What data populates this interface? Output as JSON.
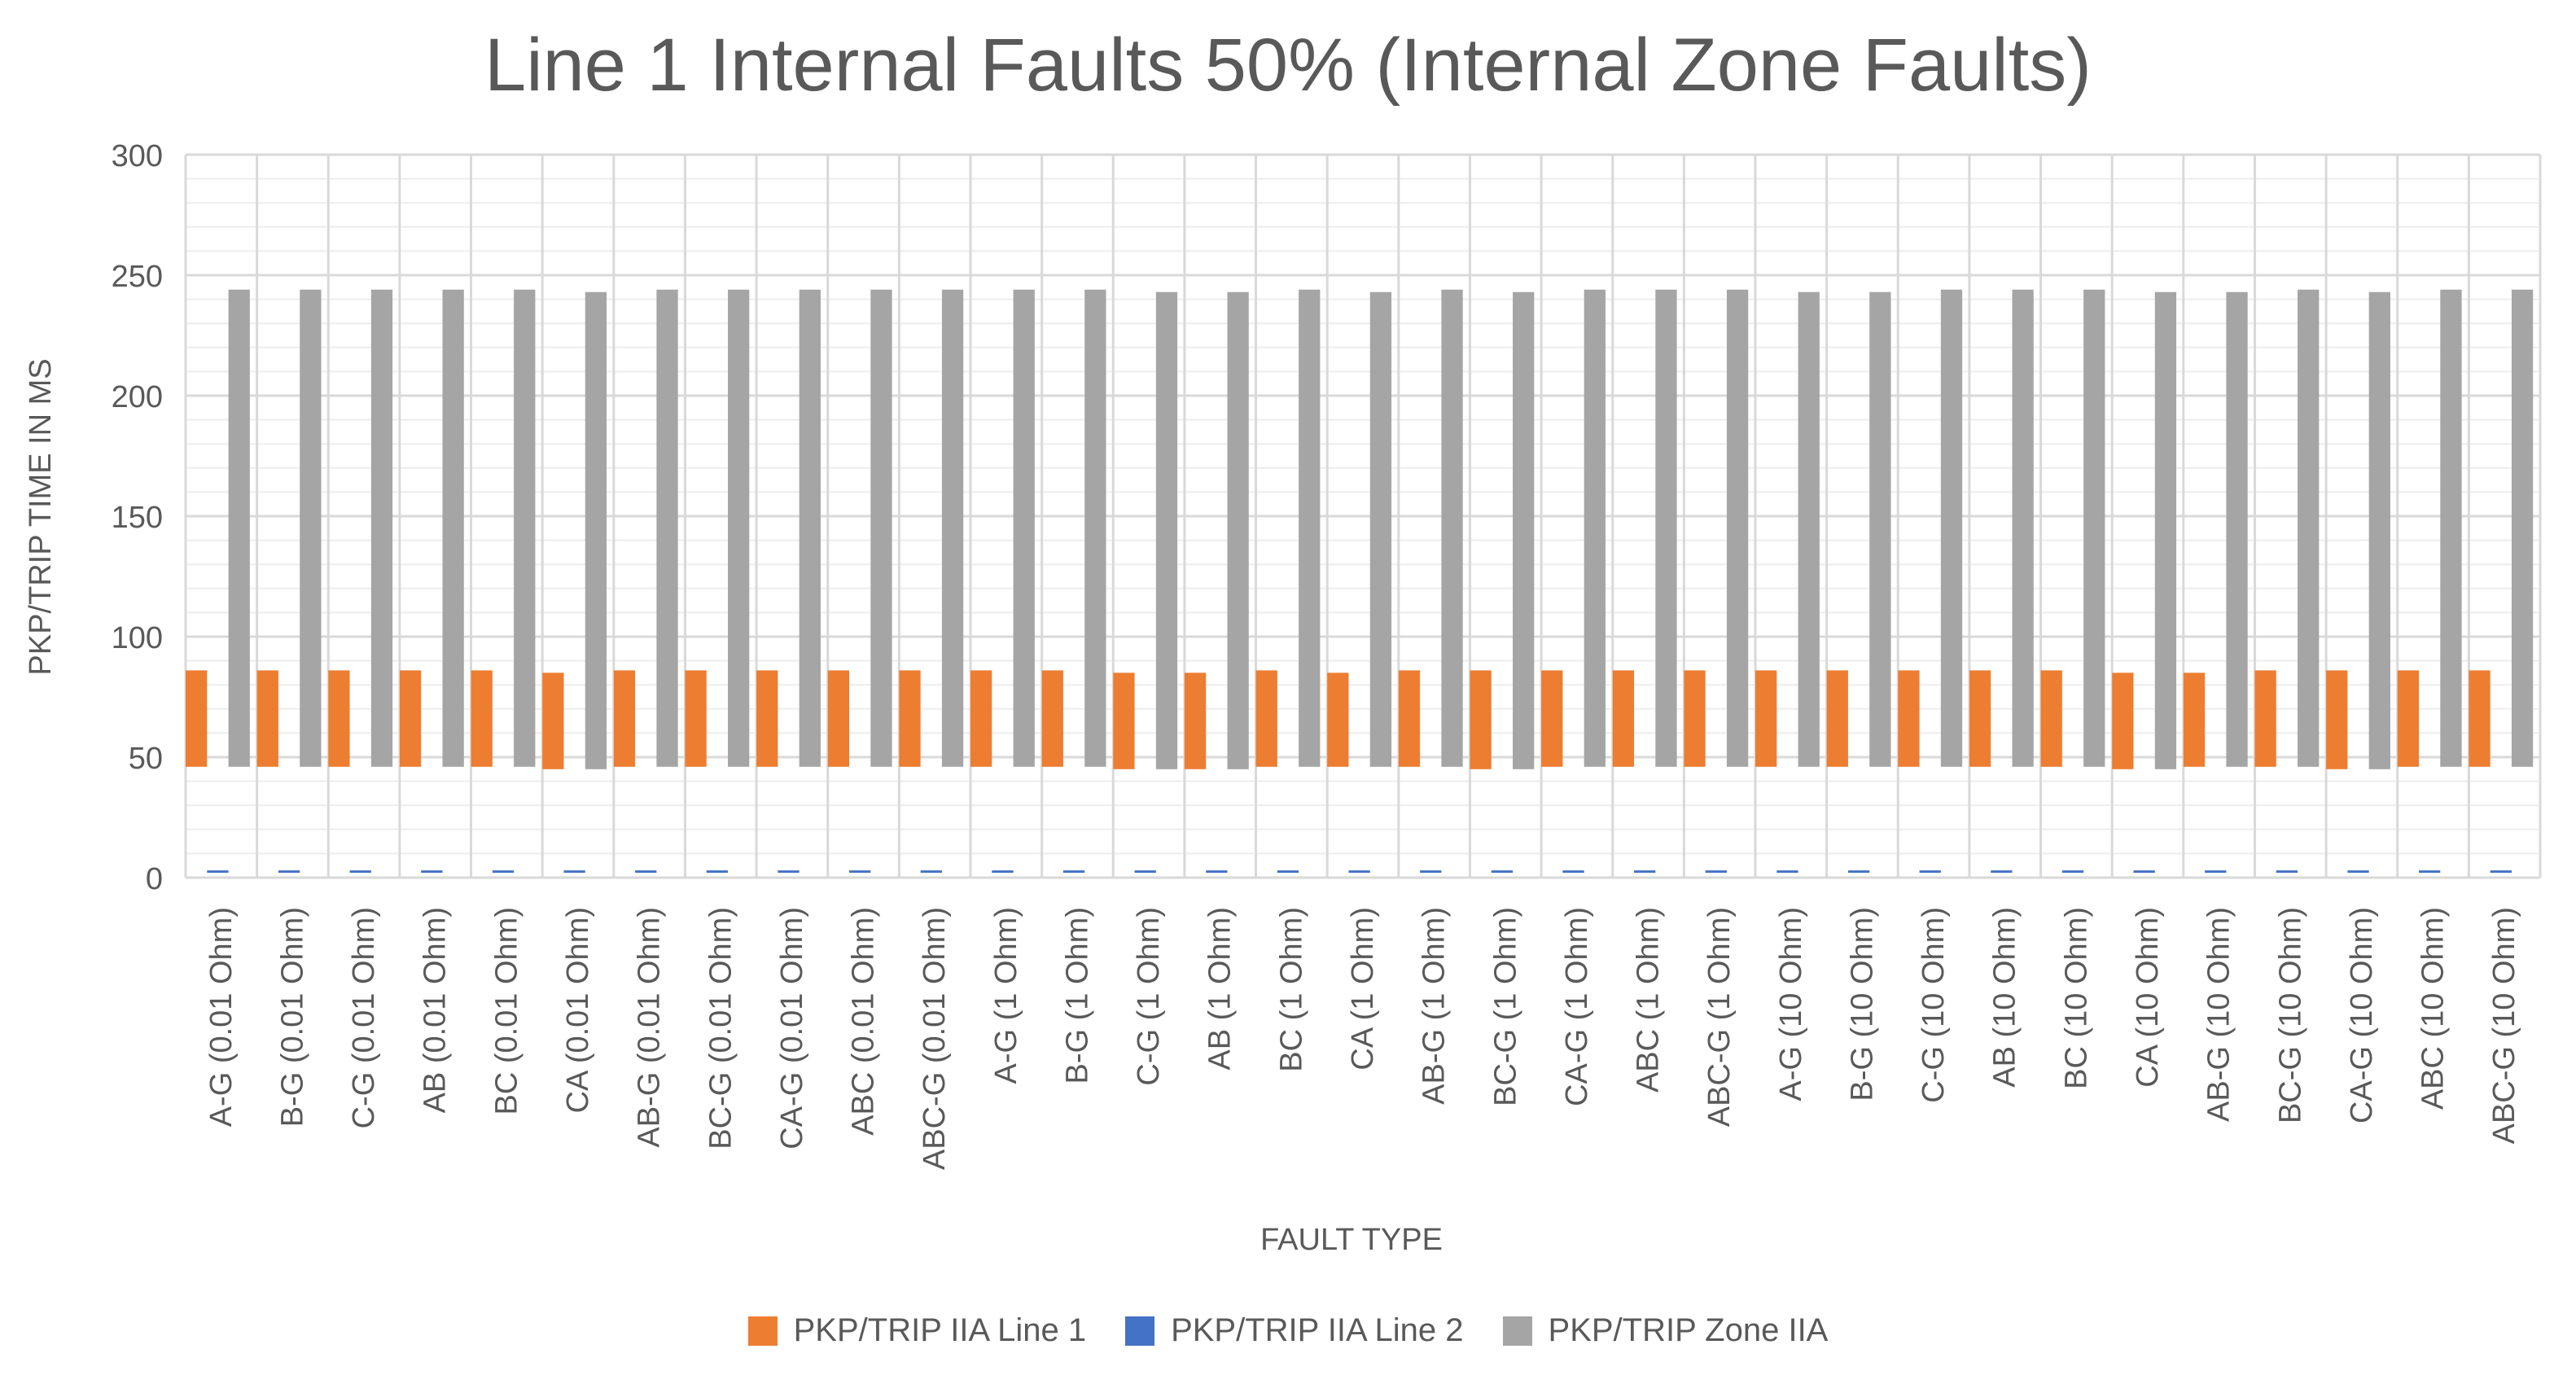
{
  "chart_data": {
    "type": "bar",
    "title": "Line 1 Internal Faults 50% (Internal Zone Faults)",
    "xlabel": "FAULT TYPE",
    "ylabel": "PKP/TRIP TIME IN MS",
    "ylim": [
      0,
      300
    ],
    "yticks": [
      "0",
      "50",
      "100",
      "150",
      "200",
      "250",
      "300"
    ],
    "grid": true,
    "legend_position": "bottom",
    "categories": [
      "A-G (0.01 Ohm)",
      "B-G (0.01 Ohm)",
      "C-G (0.01 Ohm)",
      "AB (0.01 Ohm)",
      "BC (0.01 Ohm)",
      "CA (0.01 Ohm)",
      "AB-G (0.01 Ohm)",
      "BC-G (0.01 Ohm)",
      "CA-G (0.01 Ohm)",
      "ABC (0.01 Ohm)",
      "ABC-G (0.01 Ohm)",
      "A-G (1 Ohm)",
      "B-G (1 Ohm)",
      "C-G (1 Ohm)",
      "AB (1 Ohm)",
      "BC (1 Ohm)",
      "CA (1 Ohm)",
      "AB-G (1 Ohm)",
      "BC-G (1 Ohm)",
      "CA-G (1 Ohm)",
      "ABC (1 Ohm)",
      "ABC-G (1 Ohm)",
      "A-G (10 Ohm)",
      "B-G (10 Ohm)",
      "C-G (10 Ohm)",
      "AB (10 Ohm)",
      "BC (10 Ohm)",
      "CA (10 Ohm)",
      "AB-G (10 Ohm)",
      "BC-G (10 Ohm)",
      "CA-G (10 Ohm)",
      "ABC (10 Ohm)",
      "ABC-G (10 Ohm)"
    ],
    "series": [
      {
        "name": "PKP/TRIP IIA Line 1",
        "color": "#ED7D31",
        "start": [
          46,
          46,
          46,
          46,
          46,
          45,
          46,
          46,
          46,
          46,
          46,
          46,
          46,
          45,
          45,
          46,
          46,
          46,
          45,
          46,
          46,
          46,
          46,
          46,
          46,
          46,
          46,
          45,
          46,
          46,
          45,
          46,
          46
        ],
        "end": [
          86,
          86,
          86,
          86,
          86,
          85,
          86,
          86,
          86,
          86,
          86,
          86,
          86,
          85,
          85,
          86,
          85,
          86,
          86,
          86,
          86,
          86,
          86,
          86,
          86,
          86,
          86,
          85,
          85,
          86,
          86,
          86,
          86
        ]
      },
      {
        "name": "PKP/TRIP IIA Line 2",
        "color": "#4472C4",
        "start": [
          2,
          2,
          2,
          2,
          2,
          2,
          2,
          2,
          2,
          2,
          2,
          2,
          2,
          2,
          2,
          2,
          2,
          2,
          2,
          2,
          2,
          2,
          2,
          2,
          2,
          2,
          2,
          2,
          2,
          2,
          2,
          2,
          2
        ],
        "end": [
          3,
          3,
          3,
          3,
          3,
          3,
          3,
          3,
          3,
          3,
          3,
          3,
          3,
          3,
          3,
          3,
          3,
          3,
          3,
          3,
          3,
          3,
          3,
          3,
          3,
          3,
          3,
          3,
          3,
          3,
          3,
          3,
          3
        ]
      },
      {
        "name": "PKP/TRIP Zone IIA",
        "color": "#A5A5A5",
        "start": [
          46,
          46,
          46,
          46,
          46,
          45,
          46,
          46,
          46,
          46,
          46,
          46,
          46,
          45,
          45,
          46,
          46,
          46,
          45,
          46,
          46,
          46,
          46,
          46,
          46,
          46,
          46,
          45,
          46,
          46,
          45,
          46,
          46
        ],
        "end": [
          244,
          244,
          244,
          244,
          244,
          243,
          244,
          244,
          244,
          244,
          244,
          244,
          244,
          243,
          243,
          244,
          243,
          244,
          243,
          244,
          244,
          244,
          243,
          243,
          244,
          244,
          244,
          243,
          243,
          244,
          243,
          244,
          244
        ]
      }
    ]
  }
}
